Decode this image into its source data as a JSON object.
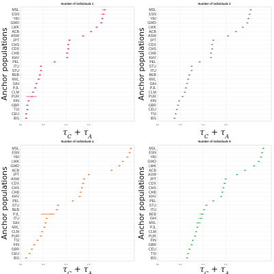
{
  "figure": {
    "ylabel": "Anchor populations",
    "xlabel": "τ_C + τ_A"
  },
  "chart_data": [
    {
      "type": "scatter",
      "title": "Number of individuals 1",
      "color": "#e8185a",
      "xlim": [
        0,
        1
      ],
      "xticks": [
        "0.0",
        "0.2",
        "0.4",
        "0.6"
      ],
      "categories": [
        "MSL",
        "ESN",
        "YRI",
        "GWD",
        "LWK",
        "ACB",
        "ASW",
        "JPT",
        "CHS",
        "CDX",
        "CHB",
        "KHV",
        "PEL",
        "ITU",
        "STU",
        "BEB",
        "MXL",
        "GIH",
        "PJL",
        "CLM",
        "PUR",
        "FIN",
        "GBR",
        "TSI",
        "CEU",
        "IBS"
      ],
      "values": [
        0.74,
        0.73,
        0.72,
        0.71,
        0.67,
        0.62,
        0.55,
        0.43,
        0.42,
        0.42,
        0.41,
        0.41,
        0.3,
        0.18,
        0.18,
        0.17,
        0.16,
        0.14,
        0.13,
        0.11,
        0.1,
        0.07,
        0.06,
        0.06,
        0.05,
        0.05
      ],
      "error_low": [
        0.72,
        0.71,
        0.71,
        0.7,
        0.66,
        0.61,
        0.54,
        0.42,
        0.41,
        0.41,
        0.4,
        0.4,
        0.29,
        0.17,
        0.17,
        0.16,
        0.15,
        0.13,
        0.12,
        0.1,
        0.05,
        0.06,
        0.05,
        0.05,
        0.04,
        0.04
      ],
      "error_high": [
        0.75,
        0.74,
        0.73,
        0.72,
        0.68,
        0.63,
        0.56,
        0.44,
        0.43,
        0.43,
        0.42,
        0.42,
        0.31,
        0.19,
        0.19,
        0.18,
        0.17,
        0.15,
        0.14,
        0.12,
        0.14,
        0.08,
        0.07,
        0.07,
        0.06,
        0.06
      ]
    },
    {
      "type": "scatter",
      "title": "Number of individuals 2",
      "color": "#7a6a9a",
      "xlim": [
        0,
        1
      ],
      "xticks": [
        "0.0",
        "0.2",
        "0.4",
        "0.6"
      ],
      "categories": [
        "MSL",
        "ESN",
        "YRI",
        "GWD",
        "LWK",
        "ACB",
        "ASW",
        "JPT",
        "CDX",
        "CHS",
        "CHB",
        "KHV",
        "PEL",
        "STU",
        "ITU",
        "BEB",
        "MXL",
        "GIH",
        "PJL",
        "CLM",
        "PUR",
        "FIN",
        "GBR",
        "CEU",
        "TSI",
        "IBS"
      ],
      "values": [
        0.82,
        0.81,
        0.8,
        0.79,
        0.75,
        0.69,
        0.62,
        0.49,
        0.48,
        0.48,
        0.47,
        0.47,
        0.37,
        0.3,
        0.3,
        0.28,
        0.27,
        0.26,
        0.25,
        0.24,
        0.22,
        0.19,
        0.18,
        0.17,
        0.16,
        0.15
      ],
      "error_low": [
        0.81,
        0.8,
        0.79,
        0.78,
        0.74,
        0.68,
        0.61,
        0.48,
        0.47,
        0.47,
        0.46,
        0.46,
        0.36,
        0.29,
        0.29,
        0.27,
        0.26,
        0.25,
        0.24,
        0.23,
        0.21,
        0.18,
        0.17,
        0.16,
        0.15,
        0.14
      ],
      "error_high": [
        0.83,
        0.82,
        0.81,
        0.8,
        0.76,
        0.7,
        0.63,
        0.5,
        0.49,
        0.49,
        0.48,
        0.48,
        0.38,
        0.31,
        0.31,
        0.29,
        0.28,
        0.27,
        0.26,
        0.25,
        0.23,
        0.2,
        0.19,
        0.18,
        0.17,
        0.16
      ]
    },
    {
      "type": "scatter",
      "title": "Number of individuals 4",
      "color": "#f26b1d",
      "xlim": [
        0,
        1
      ],
      "xticks": [
        "0.0",
        "0.2",
        "0.4",
        "0.6"
      ],
      "categories": [
        "MSL",
        "ESN",
        "YRI",
        "LWK",
        "GWD",
        "ACB",
        "JPT",
        "ASW",
        "CDX",
        "CHS",
        "CHB",
        "KHV",
        "PEL",
        "STU",
        "BEB",
        "PJL",
        "ITU",
        "GIH",
        "MXL",
        "CLM",
        "PUR",
        "TSI",
        "FIN",
        "GBR",
        "CEU",
        "IBS"
      ],
      "values": [
        0.97,
        0.96,
        0.94,
        0.9,
        0.87,
        0.8,
        0.6,
        0.56,
        0.55,
        0.54,
        0.53,
        0.52,
        0.46,
        0.33,
        0.32,
        0.27,
        0.23,
        0.22,
        0.21,
        0.19,
        0.18,
        0.15,
        0.12,
        0.1,
        0.08,
        0.05
      ],
      "error_low": [
        0.96,
        0.95,
        0.93,
        0.89,
        0.86,
        0.79,
        0.59,
        0.55,
        0.54,
        0.53,
        0.52,
        0.51,
        0.45,
        0.32,
        0.31,
        0.18,
        0.22,
        0.21,
        0.2,
        0.18,
        0.17,
        0.14,
        0.11,
        0.09,
        0.07,
        0.04
      ],
      "error_high": [
        0.98,
        0.97,
        0.95,
        0.91,
        0.88,
        0.81,
        0.61,
        0.57,
        0.56,
        0.55,
        0.54,
        0.53,
        0.47,
        0.34,
        0.33,
        0.3,
        0.24,
        0.23,
        0.22,
        0.2,
        0.19,
        0.16,
        0.13,
        0.11,
        0.09,
        0.06
      ]
    },
    {
      "type": "scatter",
      "title": "Number of individuals 8",
      "color": "#2bb04a",
      "xlim": [
        0,
        1
      ],
      "xticks": [
        "0.0",
        "0.2",
        "0.4",
        "0.6"
      ],
      "categories": [
        "MSL",
        "ESN",
        "YRI",
        "GWD",
        "LWK",
        "ACB",
        "ASW",
        "JPT",
        "CDX",
        "CHS",
        "CHB",
        "KHV",
        "PEL",
        "STU",
        "ITU",
        "BEB",
        "GIH",
        "MXL",
        "PJL",
        "CLM",
        "PUR",
        "FIN",
        "GBR",
        "CEU",
        "TSI",
        "IBS"
      ],
      "values": [
        0.93,
        0.92,
        0.91,
        0.89,
        0.85,
        0.77,
        0.7,
        0.6,
        0.59,
        0.58,
        0.57,
        0.56,
        0.49,
        0.43,
        0.41,
        0.39,
        0.38,
        0.36,
        0.35,
        0.34,
        0.33,
        0.31,
        0.3,
        0.28,
        0.27,
        0.26
      ],
      "error_low": [
        0.92,
        0.91,
        0.9,
        0.88,
        0.84,
        0.76,
        0.69,
        0.59,
        0.58,
        0.57,
        0.56,
        0.55,
        0.48,
        0.42,
        0.4,
        0.37,
        0.36,
        0.34,
        0.34,
        0.33,
        0.32,
        0.3,
        0.29,
        0.27,
        0.26,
        0.25
      ],
      "error_high": [
        0.94,
        0.93,
        0.92,
        0.9,
        0.86,
        0.78,
        0.71,
        0.61,
        0.6,
        0.59,
        0.58,
        0.57,
        0.5,
        0.44,
        0.42,
        0.41,
        0.4,
        0.38,
        0.36,
        0.35,
        0.34,
        0.32,
        0.31,
        0.29,
        0.28,
        0.27
      ]
    }
  ]
}
